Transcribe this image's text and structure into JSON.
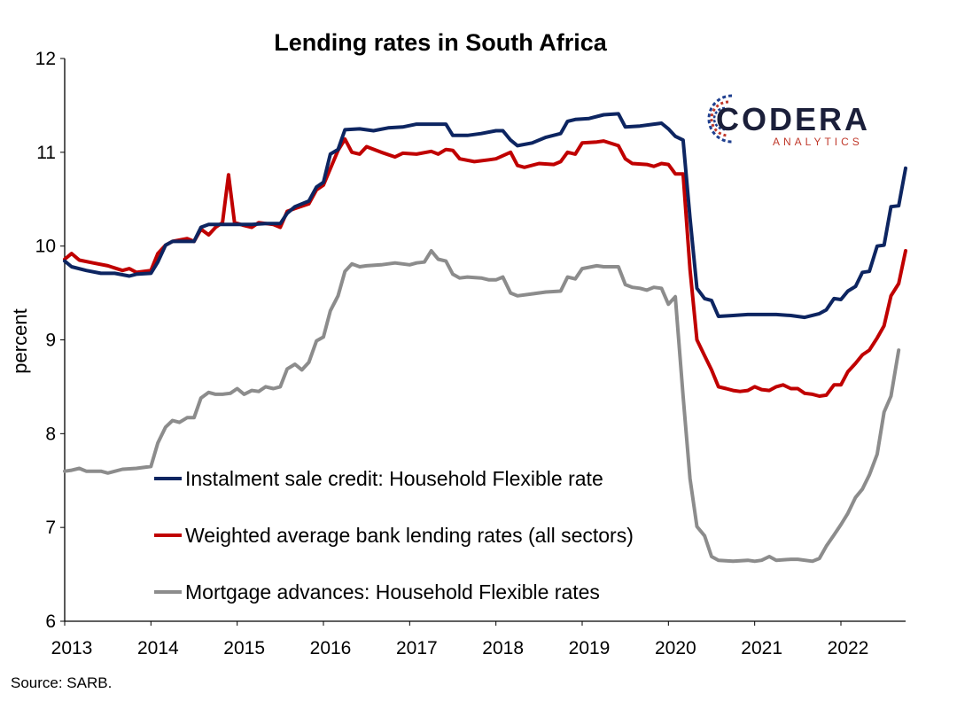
{
  "chart_data": {
    "type": "line",
    "title": "Lending rates in South Africa",
    "ylabel": "percent",
    "xlabel": "",
    "ylim": [
      6,
      12
    ],
    "xlim": [
      2013,
      2022.75
    ],
    "y_ticks": [
      "6",
      "7",
      "8",
      "9",
      "10",
      "11",
      "12"
    ],
    "x_ticks": [
      "2013",
      "2014",
      "2015",
      "2016",
      "2017",
      "2018",
      "2019",
      "2020",
      "2021",
      "2022"
    ],
    "grid": false,
    "legend_position": "bottom-left inside plot",
    "series": [
      {
        "name": "Instalment sale credit: Household Flexible rate",
        "color": "#0d2561",
        "points": [
          [
            2013.0,
            9.84
          ],
          [
            2013.08,
            9.78
          ],
          [
            2013.25,
            9.74
          ],
          [
            2013.42,
            9.71
          ],
          [
            2013.58,
            9.71
          ],
          [
            2013.75,
            9.68
          ],
          [
            2013.83,
            9.7
          ],
          [
            2014.0,
            9.71
          ],
          [
            2014.08,
            9.83
          ],
          [
            2014.17,
            10.01
          ],
          [
            2014.25,
            10.05
          ],
          [
            2014.42,
            10.05
          ],
          [
            2014.5,
            10.05
          ],
          [
            2014.58,
            10.2
          ],
          [
            2014.67,
            10.23
          ],
          [
            2014.83,
            10.23
          ],
          [
            2015.0,
            10.23
          ],
          [
            2015.17,
            10.23
          ],
          [
            2015.33,
            10.24
          ],
          [
            2015.5,
            10.24
          ],
          [
            2015.58,
            10.35
          ],
          [
            2015.67,
            10.42
          ],
          [
            2015.83,
            10.48
          ],
          [
            2015.92,
            10.63
          ],
          [
            2016.0,
            10.68
          ],
          [
            2016.08,
            10.98
          ],
          [
            2016.17,
            11.03
          ],
          [
            2016.25,
            11.24
          ],
          [
            2016.42,
            11.25
          ],
          [
            2016.58,
            11.23
          ],
          [
            2016.75,
            11.26
          ],
          [
            2016.92,
            11.27
          ],
          [
            2017.08,
            11.3
          ],
          [
            2017.25,
            11.3
          ],
          [
            2017.42,
            11.3
          ],
          [
            2017.5,
            11.18
          ],
          [
            2017.67,
            11.18
          ],
          [
            2017.83,
            11.2
          ],
          [
            2018.0,
            11.23
          ],
          [
            2018.08,
            11.23
          ],
          [
            2018.17,
            11.13
          ],
          [
            2018.25,
            11.07
          ],
          [
            2018.42,
            11.1
          ],
          [
            2018.58,
            11.16
          ],
          [
            2018.75,
            11.2
          ],
          [
            2018.83,
            11.33
          ],
          [
            2018.92,
            11.35
          ],
          [
            2019.08,
            11.36
          ],
          [
            2019.25,
            11.4
          ],
          [
            2019.42,
            11.41
          ],
          [
            2019.5,
            11.27
          ],
          [
            2019.67,
            11.28
          ],
          [
            2019.83,
            11.3
          ],
          [
            2019.92,
            11.31
          ],
          [
            2020.0,
            11.25
          ],
          [
            2020.08,
            11.17
          ],
          [
            2020.17,
            11.13
          ],
          [
            2020.25,
            10.3
          ],
          [
            2020.33,
            9.55
          ],
          [
            2020.42,
            9.44
          ],
          [
            2020.5,
            9.42
          ],
          [
            2020.58,
            9.25
          ],
          [
            2020.75,
            9.26
          ],
          [
            2020.92,
            9.27
          ],
          [
            2021.08,
            9.27
          ],
          [
            2021.25,
            9.27
          ],
          [
            2021.42,
            9.26
          ],
          [
            2021.58,
            9.24
          ],
          [
            2021.75,
            9.28
          ],
          [
            2021.83,
            9.32
          ],
          [
            2021.92,
            9.44
          ],
          [
            2022.0,
            9.43
          ],
          [
            2022.08,
            9.52
          ],
          [
            2022.17,
            9.57
          ],
          [
            2022.25,
            9.72
          ],
          [
            2022.33,
            9.73
          ],
          [
            2022.42,
            10.0
          ],
          [
            2022.5,
            10.01
          ],
          [
            2022.58,
            10.42
          ],
          [
            2022.67,
            10.43
          ],
          [
            2022.75,
            10.83
          ]
        ]
      },
      {
        "name": "Weighted average bank lending rates (all sectors)",
        "color": "#c00000",
        "points": [
          [
            2013.0,
            9.86
          ],
          [
            2013.08,
            9.92
          ],
          [
            2013.17,
            9.85
          ],
          [
            2013.33,
            9.82
          ],
          [
            2013.5,
            9.79
          ],
          [
            2013.67,
            9.74
          ],
          [
            2013.75,
            9.76
          ],
          [
            2013.83,
            9.72
          ],
          [
            2014.0,
            9.74
          ],
          [
            2014.08,
            9.92
          ],
          [
            2014.17,
            10.01
          ],
          [
            2014.25,
            10.05
          ],
          [
            2014.42,
            10.08
          ],
          [
            2014.5,
            10.05
          ],
          [
            2014.58,
            10.18
          ],
          [
            2014.67,
            10.12
          ],
          [
            2014.75,
            10.2
          ],
          [
            2014.83,
            10.25
          ],
          [
            2014.9,
            10.76
          ],
          [
            2014.97,
            10.25
          ],
          [
            2015.08,
            10.22
          ],
          [
            2015.17,
            10.2
          ],
          [
            2015.25,
            10.25
          ],
          [
            2015.42,
            10.23
          ],
          [
            2015.5,
            10.2
          ],
          [
            2015.58,
            10.37
          ],
          [
            2015.67,
            10.4
          ],
          [
            2015.83,
            10.45
          ],
          [
            2015.92,
            10.6
          ],
          [
            2016.0,
            10.65
          ],
          [
            2016.17,
            11.02
          ],
          [
            2016.25,
            11.14
          ],
          [
            2016.33,
            11.0
          ],
          [
            2016.42,
            10.98
          ],
          [
            2016.5,
            11.06
          ],
          [
            2016.67,
            11.0
          ],
          [
            2016.83,
            10.95
          ],
          [
            2016.92,
            10.99
          ],
          [
            2017.08,
            10.98
          ],
          [
            2017.25,
            11.01
          ],
          [
            2017.33,
            10.98
          ],
          [
            2017.42,
            11.03
          ],
          [
            2017.5,
            11.02
          ],
          [
            2017.58,
            10.93
          ],
          [
            2017.75,
            10.9
          ],
          [
            2017.92,
            10.92
          ],
          [
            2018.0,
            10.93
          ],
          [
            2018.17,
            11.0
          ],
          [
            2018.25,
            10.86
          ],
          [
            2018.33,
            10.84
          ],
          [
            2018.5,
            10.88
          ],
          [
            2018.67,
            10.87
          ],
          [
            2018.75,
            10.9
          ],
          [
            2018.83,
            11.0
          ],
          [
            2018.92,
            10.98
          ],
          [
            2019.0,
            11.1
          ],
          [
            2019.17,
            11.11
          ],
          [
            2019.25,
            11.12
          ],
          [
            2019.42,
            11.07
          ],
          [
            2019.5,
            10.93
          ],
          [
            2019.58,
            10.88
          ],
          [
            2019.75,
            10.87
          ],
          [
            2019.83,
            10.85
          ],
          [
            2019.92,
            10.88
          ],
          [
            2020.0,
            10.87
          ],
          [
            2020.08,
            10.77
          ],
          [
            2020.17,
            10.77
          ],
          [
            2020.25,
            9.75
          ],
          [
            2020.33,
            9.0
          ],
          [
            2020.42,
            8.83
          ],
          [
            2020.5,
            8.68
          ],
          [
            2020.58,
            8.5
          ],
          [
            2020.67,
            8.48
          ],
          [
            2020.75,
            8.46
          ],
          [
            2020.83,
            8.45
          ],
          [
            2020.92,
            8.46
          ],
          [
            2021.0,
            8.5
          ],
          [
            2021.08,
            8.47
          ],
          [
            2021.17,
            8.46
          ],
          [
            2021.25,
            8.5
          ],
          [
            2021.33,
            8.52
          ],
          [
            2021.42,
            8.48
          ],
          [
            2021.5,
            8.48
          ],
          [
            2021.58,
            8.43
          ],
          [
            2021.67,
            8.42
          ],
          [
            2021.75,
            8.4
          ],
          [
            2021.83,
            8.41
          ],
          [
            2021.92,
            8.52
          ],
          [
            2022.0,
            8.52
          ],
          [
            2022.08,
            8.66
          ],
          [
            2022.17,
            8.75
          ],
          [
            2022.25,
            8.84
          ],
          [
            2022.33,
            8.89
          ],
          [
            2022.42,
            9.02
          ],
          [
            2022.5,
            9.15
          ],
          [
            2022.58,
            9.47
          ],
          [
            2022.67,
            9.6
          ],
          [
            2022.75,
            9.95
          ]
        ]
      },
      {
        "name": "Mortgage advances: Household Flexible rates",
        "color": "#8c8c8c",
        "points": [
          [
            2013.0,
            7.6
          ],
          [
            2013.08,
            7.61
          ],
          [
            2013.17,
            7.63
          ],
          [
            2013.25,
            7.6
          ],
          [
            2013.42,
            7.6
          ],
          [
            2013.5,
            7.58
          ],
          [
            2013.67,
            7.62
          ],
          [
            2013.83,
            7.63
          ],
          [
            2014.0,
            7.65
          ],
          [
            2014.08,
            7.9
          ],
          [
            2014.17,
            8.07
          ],
          [
            2014.25,
            8.14
          ],
          [
            2014.33,
            8.12
          ],
          [
            2014.42,
            8.17
          ],
          [
            2014.5,
            8.17
          ],
          [
            2014.58,
            8.38
          ],
          [
            2014.67,
            8.44
          ],
          [
            2014.75,
            8.42
          ],
          [
            2014.83,
            8.42
          ],
          [
            2014.92,
            8.43
          ],
          [
            2015.0,
            8.48
          ],
          [
            2015.08,
            8.42
          ],
          [
            2015.17,
            8.46
          ],
          [
            2015.25,
            8.45
          ],
          [
            2015.33,
            8.5
          ],
          [
            2015.42,
            8.48
          ],
          [
            2015.5,
            8.5
          ],
          [
            2015.58,
            8.69
          ],
          [
            2015.67,
            8.74
          ],
          [
            2015.75,
            8.68
          ],
          [
            2015.83,
            8.76
          ],
          [
            2015.92,
            8.99
          ],
          [
            2016.0,
            9.03
          ],
          [
            2016.08,
            9.31
          ],
          [
            2016.17,
            9.47
          ],
          [
            2016.25,
            9.73
          ],
          [
            2016.33,
            9.81
          ],
          [
            2016.42,
            9.78
          ],
          [
            2016.5,
            9.79
          ],
          [
            2016.67,
            9.8
          ],
          [
            2016.83,
            9.82
          ],
          [
            2017.0,
            9.8
          ],
          [
            2017.08,
            9.82
          ],
          [
            2017.17,
            9.83
          ],
          [
            2017.25,
            9.95
          ],
          [
            2017.33,
            9.86
          ],
          [
            2017.42,
            9.84
          ],
          [
            2017.5,
            9.7
          ],
          [
            2017.58,
            9.66
          ],
          [
            2017.67,
            9.67
          ],
          [
            2017.83,
            9.66
          ],
          [
            2017.92,
            9.64
          ],
          [
            2018.0,
            9.64
          ],
          [
            2018.08,
            9.67
          ],
          [
            2018.17,
            9.5
          ],
          [
            2018.25,
            9.47
          ],
          [
            2018.42,
            9.49
          ],
          [
            2018.58,
            9.51
          ],
          [
            2018.75,
            9.52
          ],
          [
            2018.83,
            9.67
          ],
          [
            2018.92,
            9.65
          ],
          [
            2019.0,
            9.76
          ],
          [
            2019.17,
            9.79
          ],
          [
            2019.25,
            9.78
          ],
          [
            2019.42,
            9.78
          ],
          [
            2019.5,
            9.59
          ],
          [
            2019.58,
            9.56
          ],
          [
            2019.67,
            9.55
          ],
          [
            2019.75,
            9.53
          ],
          [
            2019.83,
            9.56
          ],
          [
            2019.92,
            9.55
          ],
          [
            2020.0,
            9.38
          ],
          [
            2020.08,
            9.46
          ],
          [
            2020.17,
            8.4
          ],
          [
            2020.25,
            7.52
          ],
          [
            2020.33,
            7.01
          ],
          [
            2020.42,
            6.91
          ],
          [
            2020.5,
            6.69
          ],
          [
            2020.58,
            6.65
          ],
          [
            2020.75,
            6.64
          ],
          [
            2020.92,
            6.65
          ],
          [
            2021.0,
            6.64
          ],
          [
            2021.08,
            6.65
          ],
          [
            2021.17,
            6.69
          ],
          [
            2021.25,
            6.65
          ],
          [
            2021.42,
            6.66
          ],
          [
            2021.5,
            6.66
          ],
          [
            2021.67,
            6.64
          ],
          [
            2021.75,
            6.67
          ],
          [
            2021.83,
            6.8
          ],
          [
            2021.92,
            6.92
          ],
          [
            2022.0,
            7.03
          ],
          [
            2022.08,
            7.15
          ],
          [
            2022.17,
            7.32
          ],
          [
            2022.25,
            7.41
          ],
          [
            2022.33,
            7.56
          ],
          [
            2022.42,
            7.78
          ],
          [
            2022.5,
            8.23
          ],
          [
            2022.58,
            8.4
          ],
          [
            2022.67,
            8.89
          ]
        ]
      }
    ],
    "source": "Source: SARB."
  },
  "logo": {
    "text": "CODERA",
    "subtext": "ANALYTICS",
    "colors": {
      "word": "#1b1f3a",
      "sub": "#c0392b",
      "blue": "#1f3f8f",
      "red": "#c0392b"
    }
  }
}
